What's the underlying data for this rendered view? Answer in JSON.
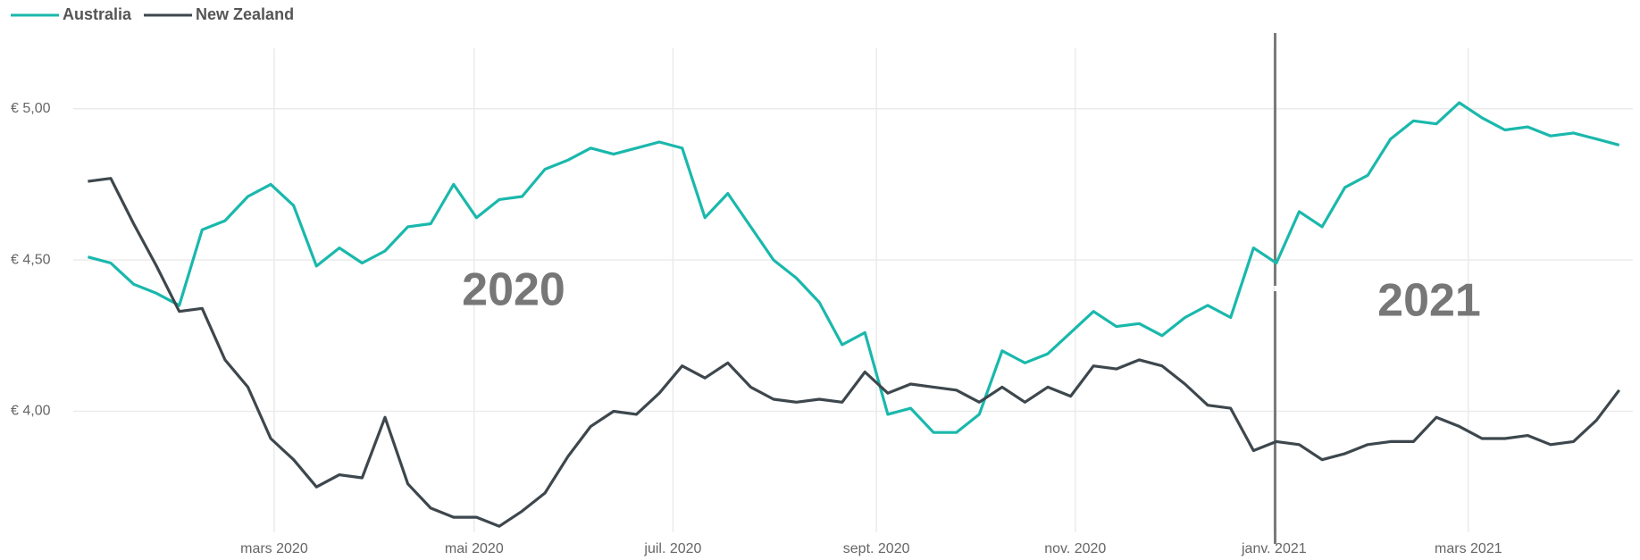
{
  "chart_data": {
    "type": "line",
    "annotations": [
      "2020",
      "2021"
    ],
    "xlim": [
      0,
      67
    ],
    "xticks": [
      {
        "value": 8.15,
        "label": "mars 2020"
      },
      {
        "value": 16.9,
        "label": "mai 2020"
      },
      {
        "value": 25.6,
        "label": "juil. 2020"
      },
      {
        "value": 34.5,
        "label": "sept. 2020"
      },
      {
        "value": 43.2,
        "label": "nov. 2020"
      },
      {
        "value": 51.9,
        "label": "janv. 2021"
      },
      {
        "value": 60.4,
        "label": "mars 2021"
      }
    ],
    "ylim": [
      3.6,
      5.2
    ],
    "yticks": [
      {
        "value": 4,
        "label": "€ 4,00"
      },
      {
        "value": 4.5,
        "label": "€ 4,50"
      },
      {
        "value": 5,
        "label": "€ 5,00"
      }
    ],
    "grid": true,
    "legend": "top-left",
    "series": [
      {
        "name": "Australia",
        "color": "#1ab8ac",
        "values": [
          4.51,
          4.49,
          4.42,
          4.39,
          4.35,
          4.6,
          4.63,
          4.71,
          4.75,
          4.68,
          4.48,
          4.54,
          4.49,
          4.53,
          4.61,
          4.62,
          4.75,
          4.64,
          4.7,
          4.71,
          4.8,
          4.83,
          4.87,
          4.85,
          4.87,
          4.89,
          4.87,
          4.64,
          4.72,
          4.61,
          4.5,
          4.44,
          4.36,
          4.22,
          4.26,
          3.99,
          4.01,
          3.93,
          3.93,
          3.99,
          4.2,
          4.16,
          4.19,
          4.26,
          4.33,
          4.28,
          4.29,
          4.25,
          4.31,
          4.35,
          4.31,
          4.54,
          4.49,
          4.66,
          4.61,
          4.74,
          4.78,
          4.9,
          4.96,
          4.95,
          5.02,
          4.97,
          4.93,
          4.94,
          4.91,
          4.92,
          4.9,
          4.88
        ]
      },
      {
        "name": "New Zealand",
        "color": "#3d474d",
        "values": [
          4.76,
          4.77,
          4.62,
          4.48,
          4.33,
          4.34,
          4.17,
          4.08,
          3.91,
          3.84,
          3.75,
          3.79,
          3.78,
          3.98,
          3.76,
          3.68,
          3.65,
          3.65,
          3.62,
          3.67,
          3.73,
          3.85,
          3.95,
          4.0,
          3.99,
          4.06,
          4.15,
          4.11,
          4.16,
          4.08,
          4.04,
          4.03,
          4.04,
          4.03,
          4.13,
          4.06,
          4.09,
          4.08,
          4.07,
          4.03,
          4.08,
          4.03,
          4.08,
          4.05,
          4.15,
          4.14,
          4.17,
          4.15,
          4.09,
          4.02,
          4.01,
          3.87,
          3.9,
          3.89,
          3.84,
          3.86,
          3.89,
          3.9,
          3.9,
          3.98,
          3.95,
          3.91,
          3.91,
          3.92,
          3.89,
          3.9,
          3.97,
          4.07
        ]
      }
    ]
  }
}
